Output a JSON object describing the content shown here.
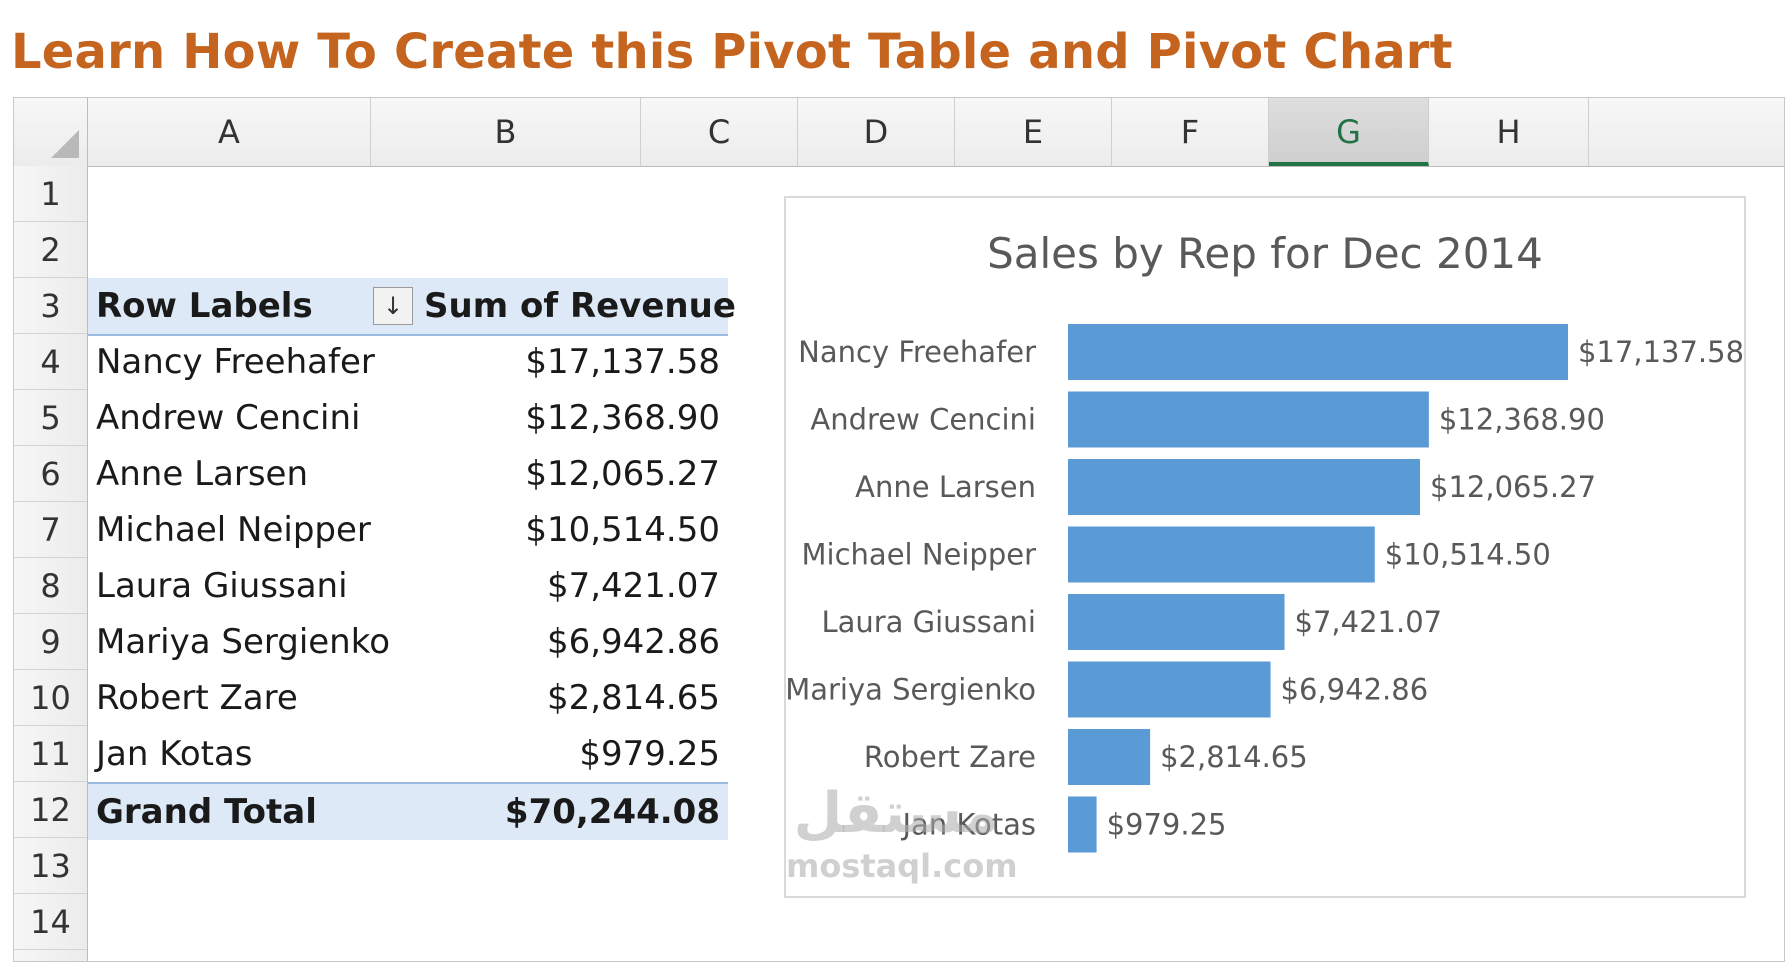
{
  "header": {
    "title": "Learn How To Create this Pivot Table and Pivot Chart"
  },
  "columns": [
    "A",
    "B",
    "C",
    "D",
    "E",
    "F",
    "G",
    "H"
  ],
  "selected_column": "G",
  "rows": [
    "1",
    "2",
    "3",
    "4",
    "5",
    "6",
    "7",
    "8",
    "9",
    "10",
    "11",
    "12",
    "13",
    "14"
  ],
  "pivot": {
    "header_label": "Row Labels",
    "header_value": "Sum of Revenue",
    "filter_icon": "↓",
    "rows": [
      {
        "label": "Nancy Freehafer",
        "value": "$17,137.58"
      },
      {
        "label": "Andrew Cencini",
        "value": "$12,368.90"
      },
      {
        "label": "Anne Larsen",
        "value": "$12,065.27"
      },
      {
        "label": "Michael Neipper",
        "value": "$10,514.50"
      },
      {
        "label": "Laura Giussani",
        "value": "$7,421.07"
      },
      {
        "label": "Mariya Sergienko",
        "value": "$6,942.86"
      },
      {
        "label": "Robert Zare",
        "value": "$2,814.65"
      },
      {
        "label": "Jan Kotas",
        "value": "$979.25"
      }
    ],
    "total_label": "Grand Total",
    "total_value": "$70,244.08"
  },
  "chart_data": {
    "type": "bar",
    "orientation": "horizontal",
    "title": "Sales by Rep for Dec 2014",
    "categories": [
      "Nancy Freehafer",
      "Andrew Cencini",
      "Anne Larsen",
      "Michael Neipper",
      "Laura Giussani",
      "Mariya Sergienko",
      "Robert Zare",
      "Jan Kotas"
    ],
    "values": [
      17137.58,
      12368.9,
      12065.27,
      10514.5,
      7421.07,
      6942.86,
      2814.65,
      979.25
    ],
    "data_labels": [
      "$17,137.58",
      "$12,368.90",
      "$12,065.27",
      "$10,514.50",
      "$7,421.07",
      "$6,942.86",
      "$2,814.65",
      "$979.25"
    ],
    "xlabel": "",
    "ylabel": "",
    "grid": false,
    "legend": "none",
    "bar_color": "#5b9bd5"
  },
  "watermark": {
    "arabic": "مستقل",
    "latin": "mostaql.com"
  }
}
